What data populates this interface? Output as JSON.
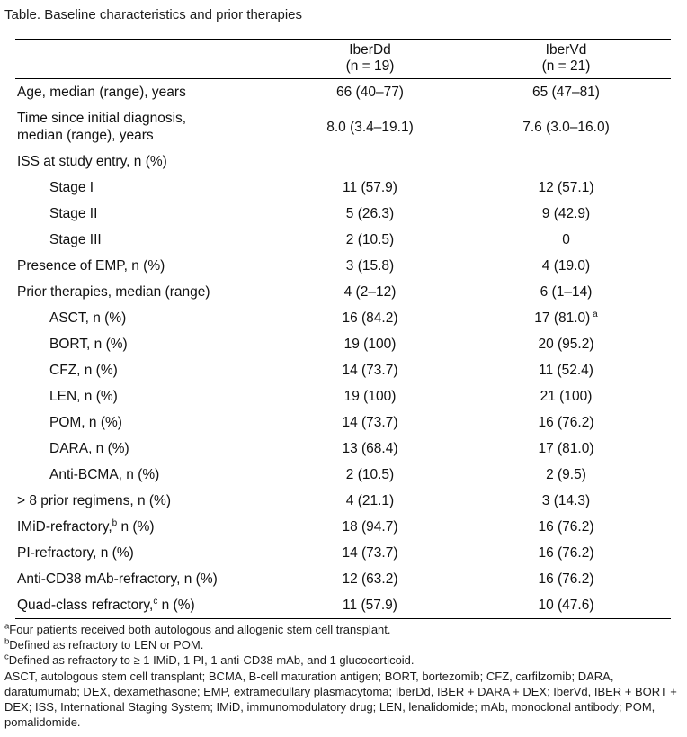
{
  "title": "Table. Baseline characteristics and prior therapies",
  "columns": {
    "iberdd": {
      "name": "IberDd",
      "n": "(n = 19)"
    },
    "ibervd": {
      "name": "IberVd",
      "n": "(n = 21)"
    }
  },
  "rows": [
    {
      "indent": false,
      "label": "Age, median (range), years",
      "sup": "",
      "label2": "",
      "label_br": "",
      "c1": "66 (40–77)",
      "c1sup": "",
      "c2": "65 (47–81)",
      "c2sup": ""
    },
    {
      "indent": false,
      "label": "Time since initial diagnosis,",
      "sup": "",
      "label2": "",
      "label_br": "median (range), years",
      "c1": "8.0 (3.4–19.1)",
      "c1sup": "",
      "c2": "7.6 (3.0–16.0)",
      "c2sup": ""
    },
    {
      "indent": false,
      "label": "ISS at study entry, n (%)",
      "sup": "",
      "label2": "",
      "label_br": "",
      "c1": "",
      "c1sup": "",
      "c2": "",
      "c2sup": ""
    },
    {
      "indent": true,
      "label": "Stage I",
      "sup": "",
      "label2": "",
      "label_br": "",
      "c1": "11 (57.9)",
      "c1sup": "",
      "c2": "12 (57.1)",
      "c2sup": ""
    },
    {
      "indent": true,
      "label": "Stage II",
      "sup": "",
      "label2": "",
      "label_br": "",
      "c1": "5 (26.3)",
      "c1sup": "",
      "c2": "9 (42.9)",
      "c2sup": ""
    },
    {
      "indent": true,
      "label": "Stage III",
      "sup": "",
      "label2": "",
      "label_br": "",
      "c1": "2 (10.5)",
      "c1sup": "",
      "c2": "0",
      "c2sup": ""
    },
    {
      "indent": false,
      "label": "Presence of EMP, n (%)",
      "sup": "",
      "label2": "",
      "label_br": "",
      "c1": "3 (15.8)",
      "c1sup": "",
      "c2": "4 (19.0)",
      "c2sup": ""
    },
    {
      "indent": false,
      "label": "Prior therapies, median (range)",
      "sup": "",
      "label2": "",
      "label_br": "",
      "c1": "4 (2–12)",
      "c1sup": "",
      "c2": "6 (1–14)",
      "c2sup": ""
    },
    {
      "indent": true,
      "label": "ASCT, n (%)",
      "sup": "",
      "label2": "",
      "label_br": "",
      "c1": "16 (84.2)",
      "c1sup": "",
      "c2": "17 (81.0)",
      "c2sup": "a"
    },
    {
      "indent": true,
      "label": "BORT, n (%)",
      "sup": "",
      "label2": "",
      "label_br": "",
      "c1": "19 (100)",
      "c1sup": "",
      "c2": "20 (95.2)",
      "c2sup": ""
    },
    {
      "indent": true,
      "label": "CFZ, n (%)",
      "sup": "",
      "label2": "",
      "label_br": "",
      "c1": "14 (73.7)",
      "c1sup": "",
      "c2": "11 (52.4)",
      "c2sup": ""
    },
    {
      "indent": true,
      "label": "LEN, n (%)",
      "sup": "",
      "label2": "",
      "label_br": "",
      "c1": "19 (100)",
      "c1sup": "",
      "c2": "21 (100)",
      "c2sup": ""
    },
    {
      "indent": true,
      "label": "POM, n (%)",
      "sup": "",
      "label2": "",
      "label_br": "",
      "c1": "14 (73.7)",
      "c1sup": "",
      "c2": "16 (76.2)",
      "c2sup": ""
    },
    {
      "indent": true,
      "label": "DARA, n (%)",
      "sup": "",
      "label2": "",
      "label_br": "",
      "c1": "13 (68.4)",
      "c1sup": "",
      "c2": "17 (81.0)",
      "c2sup": ""
    },
    {
      "indent": true,
      "label": "Anti-BCMA, n (%)",
      "sup": "",
      "label2": "",
      "label_br": "",
      "c1": "2 (10.5)",
      "c1sup": "",
      "c2": "2 (9.5)",
      "c2sup": ""
    },
    {
      "indent": false,
      "label": "> 8 prior regimens, n (%)",
      "sup": "",
      "label2": "",
      "label_br": "",
      "c1": "4 (21.1)",
      "c1sup": "",
      "c2": "3 (14.3)",
      "c2sup": ""
    },
    {
      "indent": false,
      "label": "IMiD-refractory,",
      "sup": "b",
      "label2": " n (%)",
      "label_br": "",
      "c1": "18 (94.7)",
      "c1sup": "",
      "c2": "16 (76.2)",
      "c2sup": ""
    },
    {
      "indent": false,
      "label": "PI-refractory, n (%)",
      "sup": "",
      "label2": "",
      "label_br": "",
      "c1": "14 (73.7)",
      "c1sup": "",
      "c2": "16 (76.2)",
      "c2sup": ""
    },
    {
      "indent": false,
      "label": "Anti-CD38 mAb-refractory, n (%)",
      "sup": "",
      "label2": "",
      "label_br": "",
      "c1": "12 (63.2)",
      "c1sup": "",
      "c2": "16 (76.2)",
      "c2sup": ""
    },
    {
      "indent": false,
      "label": "Quad-class refractory,",
      "sup": "c",
      "label2": " n (%)",
      "label_br": "",
      "c1": "11 (57.9)",
      "c1sup": "",
      "c2": "10 (47.6)",
      "c2sup": ""
    }
  ],
  "footnotes": [
    {
      "sup": "a",
      "text": "Four patients received both autologous and allogenic stem cell transplant."
    },
    {
      "sup": "b",
      "text": "Defined as refractory to LEN or POM."
    },
    {
      "sup": "c",
      "text": "Defined as refractory to ≥ 1 IMiD, 1 PI, 1 anti-CD38 mAb, and 1 glucocorticoid."
    },
    {
      "sup": "",
      "text": "ASCT, autologous stem cell transplant; BCMA, B-cell maturation antigen; BORT, bortezomib; CFZ, carfilzomib; DARA, daratumumab; DEX, dexamethasone; EMP, extramedullary plasmacytoma; IberDd, IBER + DARA + DEX; IberVd, IBER + BORT + DEX; ISS, International Staging System; IMiD, immunomodulatory drug; LEN, lenalidomide; mAb, monoclonal antibody; POM, pomalidomide."
    }
  ],
  "colors": {
    "background": "#ffffff",
    "text": "#111111",
    "rule": "#000000"
  }
}
